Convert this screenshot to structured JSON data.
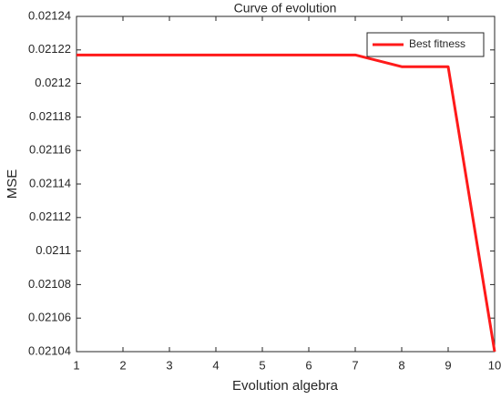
{
  "chart_data": {
    "type": "line",
    "title": "Curve of evolution",
    "x_label": "Evolution algebra",
    "y_label": "MSE",
    "x": [
      1,
      2,
      3,
      4,
      5,
      6,
      7,
      8,
      9,
      10
    ],
    "series": [
      {
        "name": "Best fitness",
        "color": "#ff1a1a",
        "values": [
          0.021217,
          0.021217,
          0.021217,
          0.021217,
          0.021217,
          0.021217,
          0.021217,
          0.02121,
          0.02121,
          0.02104
        ]
      }
    ],
    "xlim": [
      1,
      10
    ],
    "xticks": [
      1,
      2,
      3,
      4,
      5,
      6,
      7,
      8,
      9,
      10
    ],
    "ylim": [
      0.02104,
      0.02124
    ],
    "yticks": [
      0.02104,
      0.02106,
      0.02108,
      0.0211,
      0.02112,
      0.02114,
      0.02116,
      0.02118,
      0.0212,
      0.02122,
      0.02124
    ],
    "grid": false,
    "legend": "upper right"
  }
}
